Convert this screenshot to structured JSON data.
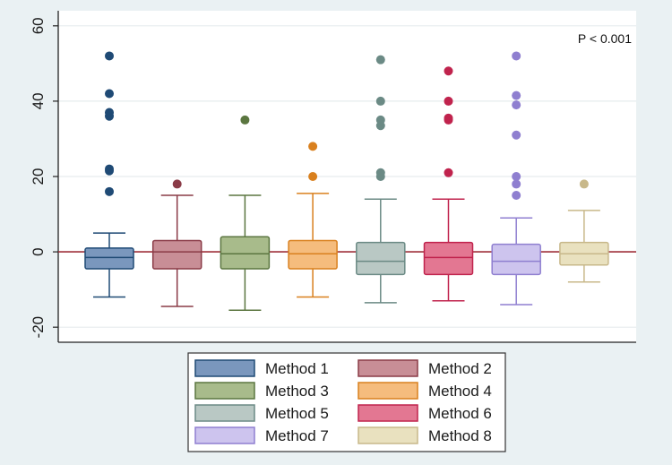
{
  "chart_data": {
    "type": "boxplot",
    "title": "",
    "xlabel": "",
    "ylabel": "",
    "ylim": [
      -24,
      64
    ],
    "yticks": [
      -20,
      0,
      20,
      40,
      60
    ],
    "ytick_labels": [
      "-20",
      "0",
      "20",
      "40",
      "60"
    ],
    "reference_line": 0,
    "annotation": "P < 0.001",
    "legend_position": "bottom",
    "grid": true,
    "series": [
      {
        "name": "Method 1",
        "fill": "#7a97bd",
        "stroke": "#1f4a75",
        "whisker_low": -12,
        "q1": -4.5,
        "median": -1.5,
        "q3": 1,
        "whisker_high": 5,
        "outliers": [
          16,
          21.5,
          22,
          36,
          37,
          42,
          52
        ]
      },
      {
        "name": "Method 2",
        "fill": "#c88e96",
        "stroke": "#8a3b47",
        "whisker_low": -14.5,
        "q1": -4.5,
        "median": 0,
        "q3": 3,
        "whisker_high": 15,
        "outliers": [
          18
        ]
      },
      {
        "name": "Method 3",
        "fill": "#a8bb8b",
        "stroke": "#5b7640",
        "whisker_low": -15.5,
        "q1": -4.5,
        "median": -0.5,
        "q3": 4,
        "whisker_high": 15,
        "outliers": [
          35
        ]
      },
      {
        "name": "Method 4",
        "fill": "#f5bc7d",
        "stroke": "#d9801e",
        "whisker_low": -12,
        "q1": -4.5,
        "median": -0.5,
        "q3": 3,
        "whisker_high": 15.5,
        "outliers": [
          20,
          28
        ]
      },
      {
        "name": "Method 5",
        "fill": "#b9c8c4",
        "stroke": "#6b8a85",
        "whisker_low": -13.5,
        "q1": -6,
        "median": -2.5,
        "q3": 2.5,
        "whisker_high": 14,
        "outliers": [
          20,
          21,
          33.5,
          35,
          40,
          51
        ]
      },
      {
        "name": "Method 6",
        "fill": "#e37792",
        "stroke": "#c0234d",
        "whisker_low": -13,
        "q1": -6,
        "median": -1.5,
        "q3": 2.5,
        "whisker_high": 14,
        "outliers": [
          21,
          35,
          35.5,
          40,
          48
        ]
      },
      {
        "name": "Method 7",
        "fill": "#cdc4ee",
        "stroke": "#8f7fd0",
        "whisker_low": -14,
        "q1": -6,
        "median": -2.5,
        "q3": 2,
        "whisker_high": 9,
        "outliers": [
          15,
          18,
          20,
          31,
          39,
          41.5,
          52
        ]
      },
      {
        "name": "Method 8",
        "fill": "#e9e1bf",
        "stroke": "#c8b88a",
        "whisker_low": -8,
        "q1": -3.5,
        "median": -0.5,
        "q3": 2.5,
        "whisker_high": 11,
        "outliers": [
          18
        ]
      }
    ]
  },
  "colors": {
    "frame_bg": "#eaf1f3",
    "plot_bg": "#ffffff",
    "gridline": "#e6ecee",
    "zero_line": "#a0303a",
    "axis": "#222222"
  }
}
